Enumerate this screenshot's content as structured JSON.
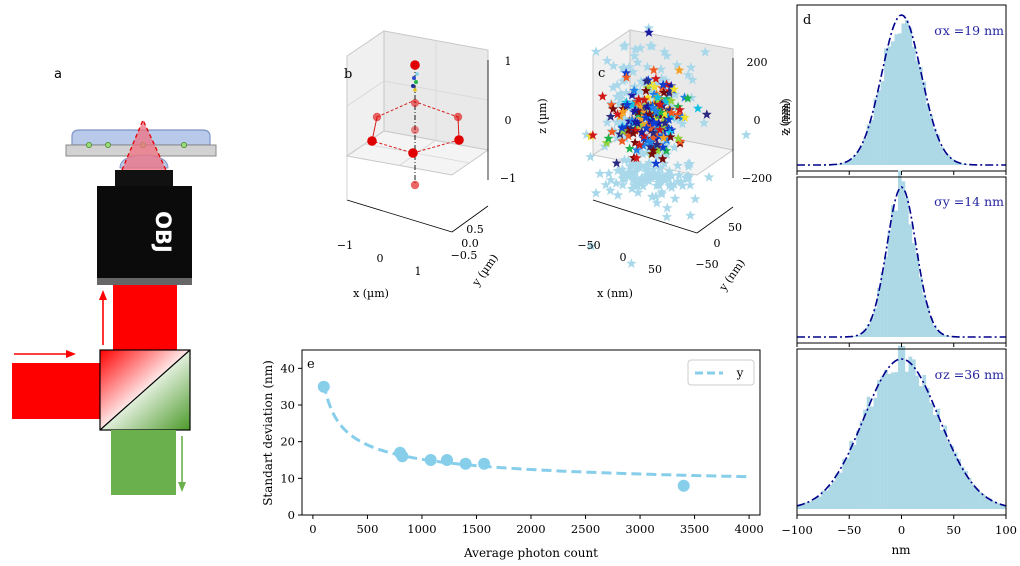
{
  "panel_labels": {
    "a": "a",
    "b": "b",
    "c": "c",
    "d": "d",
    "e": "e"
  },
  "schematic": {
    "objective_label": "OBJ"
  },
  "chart_data": [
    {
      "id": "b",
      "type": "scatter",
      "title": "",
      "xlabel": "x (µm)",
      "ylabel": "y (µm)",
      "zlabel": "z (µm)",
      "x_ticks": [
        "−1",
        "0",
        "1"
      ],
      "y_ticks": [
        "0.5",
        "0.0",
        "−0.5"
      ],
      "z_ticks": [
        "1",
        "0",
        "−1"
      ],
      "points_xyz": [
        [
          0,
          0,
          1
        ],
        [
          0,
          0,
          -1
        ],
        [
          0,
          0,
          0
        ],
        [
          1,
          0,
          0
        ],
        [
          -1,
          0,
          0
        ],
        [
          0.5,
          0.5,
          0
        ],
        [
          -0.5,
          -0.5,
          0
        ],
        [
          0,
          0,
          0.5
        ],
        [
          0,
          0,
          -0.5
        ]
      ]
    },
    {
      "id": "c",
      "type": "scatter",
      "xlabel": "x (nm)",
      "ylabel": "y (nm)",
      "zlabel": "z (nm)",
      "x_ticks": [
        "−50",
        "0",
        "50"
      ],
      "y_ticks": [
        "50",
        "0",
        "−50"
      ],
      "z_ticks": [
        "200",
        "0",
        "−200"
      ]
    },
    {
      "id": "d-x",
      "type": "bar",
      "kind": "histogram",
      "annotation": "σx =19 nm",
      "sigma": 19,
      "mean": 0,
      "xlim": [
        -100,
        100
      ]
    },
    {
      "id": "d-y",
      "type": "bar",
      "kind": "histogram",
      "annotation": "σy =14 nm",
      "sigma": 14,
      "mean": 0,
      "xlim": [
        -100,
        100
      ]
    },
    {
      "id": "d-z",
      "type": "bar",
      "kind": "histogram",
      "annotation": "σz =36 nm",
      "sigma": 36,
      "mean": 0,
      "xlim": [
        -100,
        100
      ],
      "xlabel": "nm",
      "x_ticks": [
        "−100",
        "−50",
        "0",
        "50",
        "100"
      ],
      "x_tick_values": [
        -100,
        -50,
        0,
        50,
        100
      ]
    },
    {
      "id": "e",
      "type": "scatter",
      "xlabel": "Average photon count",
      "ylabel": "Standart deviation (nm)",
      "xlim": [
        -100,
        4100
      ],
      "ylim": [
        0,
        45
      ],
      "x_ticks": [
        0,
        500,
        1000,
        1500,
        2000,
        2500,
        3000,
        3500,
        4000
      ],
      "y_ticks": [
        0,
        10,
        20,
        30,
        40
      ],
      "points": [
        {
          "x": 100,
          "y": 35
        },
        {
          "x": 800,
          "y": 17
        },
        {
          "x": 820,
          "y": 16
        },
        {
          "x": 1080,
          "y": 15
        },
        {
          "x": 1230,
          "y": 15
        },
        {
          "x": 1400,
          "y": 14
        },
        {
          "x": 1570,
          "y": 14
        },
        {
          "x": 3400,
          "y": 8
        }
      ],
      "fit": {
        "name": "y",
        "formula": "300/sqrt(x)+5.7",
        "x_from": 100,
        "x_to": 4000
      },
      "legend": [
        "y"
      ]
    }
  ],
  "colors": {
    "marker": "#87ceeb",
    "fit": "#87ceeb",
    "hist": "#add8e6",
    "gauss": "#00008b",
    "annotation": "#2525a0",
    "red": "#ff0000",
    "green": "#6ab04c"
  }
}
